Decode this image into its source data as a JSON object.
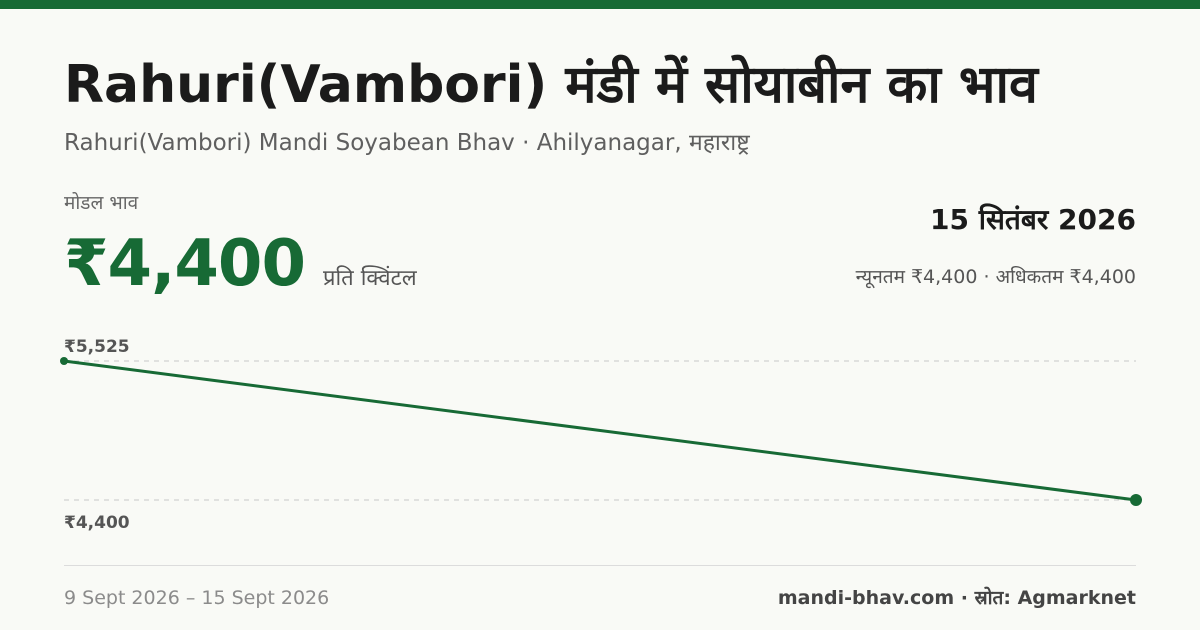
{
  "colors": {
    "accent": "#176a35",
    "gridline": "#c8c8c8",
    "background": "#f9faf6"
  },
  "header": {
    "title": "Rahuri(Vambori) मंडी में सोयाबीन का भाव",
    "subtitle": "Rahuri(Vambori) Mandi Soyabean Bhav · Ahilyanagar, महाराष्ट्र"
  },
  "price": {
    "label": "मोडल भाव",
    "value": "₹4,400",
    "unit": "प्रति क्विंटल",
    "date": "15 सितंबर 2026",
    "minmax": "न्यूनतम ₹4,400 · अधिकतम ₹4,400"
  },
  "chart_data": {
    "type": "line",
    "x": [
      "9 Sept 2026",
      "15 Sept 2026"
    ],
    "series": [
      {
        "values": [
          5525,
          4400
        ]
      }
    ],
    "y_tick_labels": [
      "₹5,525",
      "₹4,400"
    ],
    "ylim": [
      4400,
      5525
    ],
    "grid": "dashed horizontal at max and min",
    "color": "#176a35"
  },
  "footer": {
    "range": "9 Sept 2026 – 15 Sept 2026",
    "source": "mandi-bhav.com · स्रोत: Agmarknet"
  }
}
